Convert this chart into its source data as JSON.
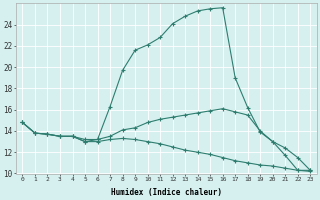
{
  "xlabel": "Humidex (Indice chaleur)",
  "background_color": "#d6f0f0",
  "grid_color": "#ffffff",
  "line_color": "#2e7d6e",
  "xlim": [
    -0.5,
    23.5
  ],
  "ylim": [
    10,
    26
  ],
  "yticks": [
    10,
    12,
    14,
    16,
    18,
    20,
    22,
    24
  ],
  "xticks": [
    0,
    1,
    2,
    3,
    4,
    5,
    6,
    7,
    8,
    9,
    10,
    11,
    12,
    13,
    14,
    15,
    16,
    17,
    18,
    19,
    20,
    21,
    22,
    23
  ],
  "line_max_y": [
    14.8,
    13.8,
    13.7,
    13.5,
    13.5,
    13.0,
    13.2,
    16.3,
    19.7,
    21.6,
    22.1,
    22.8,
    24.1,
    24.8,
    25.3,
    25.5,
    25.6,
    19.0,
    16.2,
    13.9,
    13.0,
    11.7,
    10.3,
    10.3
  ],
  "line_mid_y": [
    14.8,
    13.8,
    13.7,
    13.5,
    13.5,
    13.2,
    13.2,
    13.5,
    14.1,
    14.3,
    14.8,
    15.1,
    15.3,
    15.5,
    15.7,
    15.9,
    16.1,
    15.8,
    15.5,
    14.0,
    13.0,
    12.4,
    11.5,
    10.3
  ],
  "line_min_y": [
    14.8,
    13.8,
    13.7,
    13.5,
    13.5,
    13.0,
    13.0,
    13.2,
    13.3,
    13.2,
    13.0,
    12.8,
    12.5,
    12.2,
    12.0,
    11.8,
    11.5,
    11.2,
    11.0,
    10.8,
    10.7,
    10.5,
    10.3,
    10.2
  ]
}
